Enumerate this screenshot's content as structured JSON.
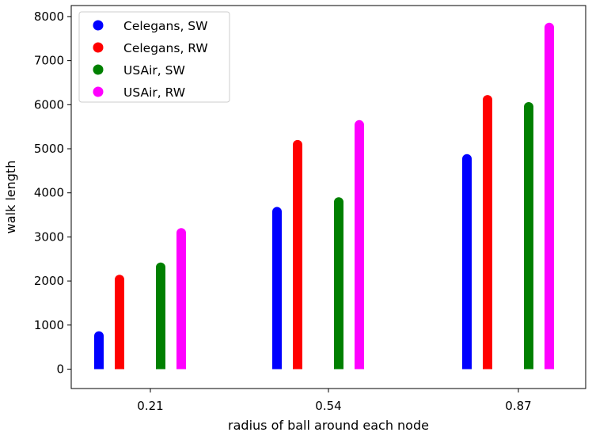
{
  "chart_data": {
    "type": "bar",
    "categories": [
      "0.21",
      "0.54",
      "0.87"
    ],
    "series": [
      {
        "name": "Celegans, SW",
        "color": "#0000ff",
        "values": [
          860,
          3680,
          4880
        ]
      },
      {
        "name": "Celegans, RW",
        "color": "#ff0000",
        "values": [
          2140,
          5200,
          6220
        ]
      },
      {
        "name": "USAir, SW",
        "color": "#008000",
        "values": [
          2420,
          3900,
          6060
        ]
      },
      {
        "name": "USAir, RW",
        "color": "#ff00ff",
        "values": [
          3200,
          5650,
          7860
        ]
      }
    ],
    "title": "",
    "xlabel": "radius of ball around each node",
    "ylabel": "walk length",
    "ylim": [
      -440,
      8250
    ],
    "yticks": [
      0,
      1000,
      2000,
      3000,
      4000,
      5000,
      6000,
      7000,
      8000
    ],
    "legend_position": "top-left",
    "grid": false
  }
}
